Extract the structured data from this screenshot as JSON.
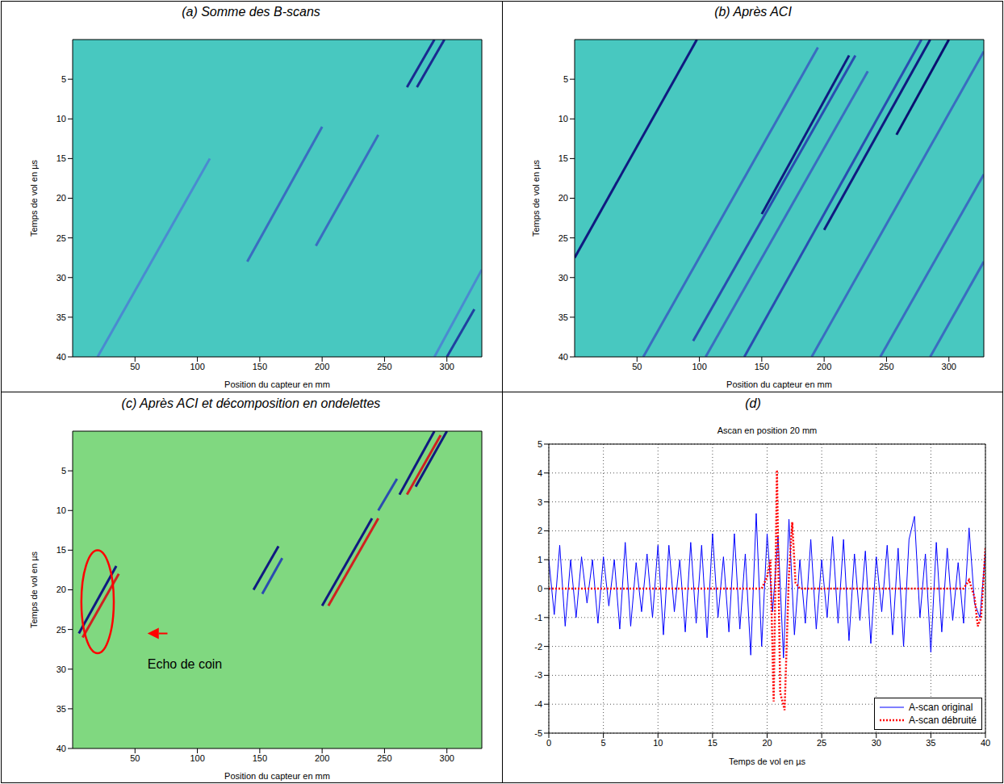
{
  "chart_data": [
    {
      "type": "bscan",
      "panel": "(a) Somme des B-scans",
      "x_label": "Position du capteur en mm",
      "y_label": "Temps de vol en µs",
      "xlim": [
        0,
        328
      ],
      "ylim": [
        0,
        40
      ],
      "xticks": [
        50,
        100,
        150,
        200,
        250,
        300
      ],
      "yticks": [
        5,
        10,
        15,
        20,
        25,
        30,
        35,
        40
      ],
      "grid": false,
      "color": "#48c8c0",
      "echoes": [
        {
          "x": [
            20,
            110
          ],
          "y": [
            40,
            15
          ],
          "color": "#4a8ad0"
        },
        {
          "x": [
            140,
            200
          ],
          "y": [
            28,
            11
          ],
          "color": "#3a6cc0"
        },
        {
          "x": [
            195,
            245
          ],
          "y": [
            26,
            12
          ],
          "color": "#3a6cc0"
        },
        {
          "x": [
            268,
            290
          ],
          "y": [
            6,
            0
          ],
          "color": "#1a2a90"
        },
        {
          "x": [
            276,
            298
          ],
          "y": [
            6,
            0
          ],
          "color": "#1a2a90"
        },
        {
          "x": [
            290,
            328
          ],
          "y": [
            40,
            29
          ],
          "color": "#4a8ad0"
        },
        {
          "x": [
            300,
            322
          ],
          "y": [
            40,
            34
          ],
          "color": "#2040a0"
        }
      ]
    },
    {
      "type": "bscan",
      "panel": "(b) Après ACI",
      "x_label": "Position du capteur en mm",
      "y_label": "Temps de vol en µs",
      "xlim": [
        0,
        328
      ],
      "ylim": [
        0,
        40
      ],
      "xticks": [
        50,
        100,
        150,
        200,
        250,
        300
      ],
      "yticks": [
        5,
        10,
        15,
        20,
        25,
        30,
        35,
        40
      ],
      "grid": false,
      "color": "#48c8c0",
      "echoes": [
        {
          "x": [
            0,
            98
          ],
          "y": [
            27.5,
            0
          ],
          "color": "#101a80"
        },
        {
          "x": [
            55,
            195
          ],
          "y": [
            40,
            1
          ],
          "color": "#3a6cc0"
        },
        {
          "x": [
            95,
            225
          ],
          "y": [
            38,
            2
          ],
          "color": "#2a4cb0"
        },
        {
          "x": [
            105,
            235
          ],
          "y": [
            40,
            4
          ],
          "color": "#3a6cc0"
        },
        {
          "x": [
            136,
            278
          ],
          "y": [
            40,
            0
          ],
          "color": "#2a4cb0"
        },
        {
          "x": [
            150,
            220
          ],
          "y": [
            22,
            2
          ],
          "color": "#101a80"
        },
        {
          "x": [
            200,
            285
          ],
          "y": [
            24,
            0
          ],
          "color": "#101a80"
        },
        {
          "x": [
            258,
            300
          ],
          "y": [
            12,
            0
          ],
          "color": "#0a1070"
        },
        {
          "x": [
            190,
            328
          ],
          "y": [
            40,
            1.5
          ],
          "color": "#3a6cc0"
        },
        {
          "x": [
            245,
            328
          ],
          "y": [
            40,
            17
          ],
          "color": "#3a6cc0"
        },
        {
          "x": [
            285,
            328
          ],
          "y": [
            40,
            28
          ],
          "color": "#3a6cc0"
        }
      ]
    },
    {
      "type": "bscan",
      "panel": "(c) Après ACI et décomposition en ondelettes",
      "x_label": "Position du capteur en mm",
      "y_label": "Temps de vol en µs",
      "xlim": [
        0,
        328
      ],
      "ylim": [
        0,
        40
      ],
      "xticks": [
        50,
        100,
        150,
        200,
        250,
        300
      ],
      "yticks": [
        5,
        10,
        15,
        20,
        25,
        30,
        35,
        40
      ],
      "grid": false,
      "color": "#80d880",
      "echoes": [
        {
          "x": [
            5,
            35
          ],
          "y": [
            25.5,
            17
          ],
          "color": "#101a80"
        },
        {
          "x": [
            8,
            37
          ],
          "y": [
            26,
            18
          ],
          "color": "#d02020"
        },
        {
          "x": [
            145,
            165
          ],
          "y": [
            20,
            14.5
          ],
          "color": "#101a80"
        },
        {
          "x": [
            152,
            168
          ],
          "y": [
            20.5,
            16
          ],
          "color": "#2a4cb0"
        },
        {
          "x": [
            200,
            240
          ],
          "y": [
            22,
            11
          ],
          "color": "#101a80"
        },
        {
          "x": [
            205,
            245
          ],
          "y": [
            22,
            11
          ],
          "color": "#d02020"
        },
        {
          "x": [
            245,
            260
          ],
          "y": [
            10,
            6
          ],
          "color": "#2a4cb0"
        },
        {
          "x": [
            262,
            290
          ],
          "y": [
            8,
            0
          ],
          "color": "#101a80"
        },
        {
          "x": [
            268,
            295
          ],
          "y": [
            8,
            0.5
          ],
          "color": "#d02020"
        },
        {
          "x": [
            275,
            300
          ],
          "y": [
            7,
            0
          ],
          "color": "#101a80"
        }
      ],
      "ellipse": {
        "x": 20,
        "y": 21.5,
        "rx": 13,
        "ry": 6.5,
        "color": "#ff0000"
      },
      "annotations": [
        {
          "text": "Echo de coin",
          "x": 60,
          "y": 29.5,
          "arrow_from": [
            76,
            25.5
          ],
          "arrow_to": [
            60,
            25.5
          ],
          "color": "#ff0000"
        }
      ]
    },
    {
      "type": "line",
      "panel": "(d)",
      "title": "Ascan en position 20 mm",
      "x_label": "Temps de vol en µs",
      "xlim": [
        0,
        40
      ],
      "ylim": [
        -5,
        5
      ],
      "xticks": [
        0,
        5,
        10,
        15,
        20,
        25,
        30,
        35,
        40
      ],
      "yticks": [
        -5,
        -4,
        -3,
        -2,
        -1,
        0,
        1,
        2,
        3,
        4,
        5
      ],
      "grid": true,
      "legend": "lower right",
      "series": [
        {
          "name": "A-scan original",
          "color": "#0000ff",
          "line_style": "solid",
          "x": [
            0,
            0.5,
            1,
            1.5,
            2,
            2.5,
            3,
            3.5,
            4,
            4.5,
            5,
            5.5,
            6,
            6.5,
            7,
            7.5,
            8,
            8.5,
            9,
            9.5,
            10,
            10.5,
            11,
            11.5,
            12,
            12.5,
            13,
            13.5,
            14,
            14.5,
            15,
            15.5,
            16,
            16.5,
            17,
            17.5,
            18,
            18.5,
            19,
            19.5,
            20,
            20.5,
            21,
            21.5,
            22,
            22.5,
            23,
            23.5,
            24,
            24.5,
            25,
            25.5,
            26,
            26.5,
            27,
            27.5,
            28,
            28.5,
            29,
            29.5,
            30,
            30.5,
            31,
            31.5,
            32,
            32.5,
            33,
            33.5,
            34,
            34.5,
            35,
            35.5,
            36,
            36.5,
            37,
            37.5,
            38,
            38.5,
            39,
            39.5,
            40
          ],
          "values": [
            1.0,
            -0.9,
            1.5,
            -1.3,
            1.0,
            -1.0,
            1.1,
            -0.5,
            1.0,
            -1.2,
            1.1,
            -0.6,
            1.0,
            -1.4,
            1.6,
            -1.3,
            0.9,
            -0.8,
            1.2,
            -1.0,
            1.5,
            -1.6,
            1.5,
            -0.8,
            1.0,
            -1.5,
            1.6,
            -1.2,
            1.5,
            -1.7,
            1.9,
            -1.0,
            1.1,
            -1.5,
            1.9,
            -1.4,
            1.2,
            -2.3,
            2.6,
            -2.0,
            1.9,
            -0.8,
            1.8,
            -2.4,
            2.4,
            -1.6,
            1.0,
            -1.2,
            1.7,
            -1.4,
            1.0,
            -1.0,
            1.8,
            -1.2,
            1.7,
            -1.8,
            1.2,
            -1.1,
            1.3,
            -1.9,
            1.1,
            -0.8,
            1.5,
            -1.6,
            1.4,
            -2.0,
            1.7,
            2.5,
            -1.0,
            1.2,
            -2.2,
            1.6,
            -1.5,
            1.4,
            -1.1,
            0.9,
            -1.2,
            2.1,
            -0.5,
            -1.0,
            1.3
          ]
        },
        {
          "name": "A-scan débruité",
          "color": "#ff0000",
          "line_style": "dotted",
          "x": [
            0,
            5,
            10,
            15,
            19.5,
            20,
            20.3,
            20.6,
            20.9,
            21.2,
            21.6,
            22.0,
            22.3,
            22.6,
            23,
            25,
            30,
            35,
            38,
            38.5,
            39,
            39.3,
            39.6,
            40
          ],
          "values": [
            0,
            0,
            0,
            0,
            0,
            0.4,
            1,
            -3.9,
            4.1,
            -3.6,
            -4.2,
            0.5,
            2.3,
            0.2,
            0,
            0,
            0,
            0,
            0,
            0.3,
            -0.3,
            -1.3,
            -1.0,
            1.4
          ]
        }
      ]
    }
  ]
}
